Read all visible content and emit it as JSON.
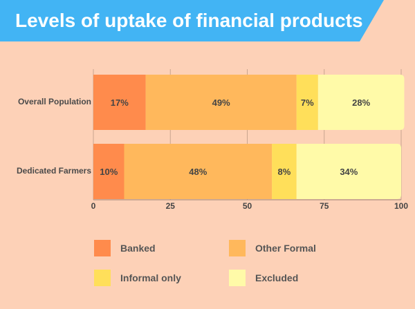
{
  "title": "Levels of uptake of financial products",
  "colors": {
    "banner": "#42b4f4",
    "background": "#fdd1b7",
    "banked": "#ff8b4c",
    "other_formal": "#ffb85c",
    "informal_only": "#ffdf5a",
    "excluded": "#fffaa8"
  },
  "chart_data": {
    "type": "bar",
    "orientation": "horizontal",
    "stacked": true,
    "categories": [
      "Overall Population",
      "Dedicated Farmers"
    ],
    "series": [
      {
        "name": "Banked",
        "values": [
          17,
          10
        ]
      },
      {
        "name": "Other Formal",
        "values": [
          49,
          48
        ]
      },
      {
        "name": "Informal only",
        "values": [
          7,
          8
        ]
      },
      {
        "name": "Excluded",
        "values": [
          28,
          34
        ]
      }
    ],
    "data_labels": [
      [
        "17%",
        "49%",
        "7%",
        "28%"
      ],
      [
        "10%",
        "48%",
        "8%",
        "34%"
      ]
    ],
    "x_ticks": [
      "0",
      "25",
      "50",
      "75",
      "100"
    ],
    "xlim": [
      0,
      100
    ],
    "grid": true,
    "legend_position": "bottom"
  }
}
